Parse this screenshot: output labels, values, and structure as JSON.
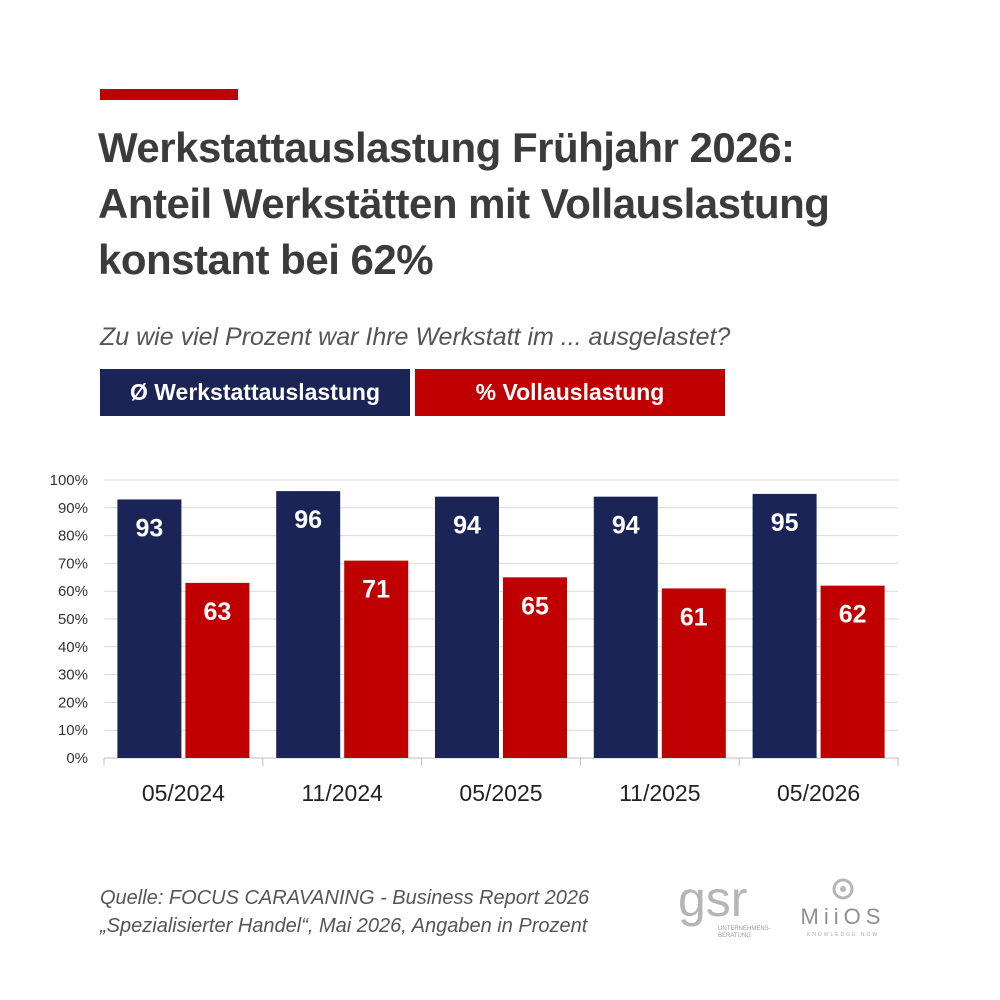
{
  "header": {
    "title_lines": [
      "Werkstattauslastung Frühjahr 2026:",
      "Anteil Werkstätten mit Vollauslastung",
      "konstant bei 62%"
    ],
    "subtitle": "Zu wie viel Prozent war Ihre Werkstatt im ... ausgelastet?"
  },
  "legend": {
    "items": [
      {
        "label": "Ø Werkstattauslastung",
        "color": "#1a2456"
      },
      {
        "label": "% Vollauslastung",
        "color": "#c00000"
      }
    ]
  },
  "colors": {
    "accent": "#c00000",
    "navy": "#1a2456",
    "red": "#c00000",
    "grid": "#d9d9d9"
  },
  "chart_data": {
    "type": "bar",
    "categories": [
      "05/2024",
      "11/2024",
      "05/2025",
      "11/2025",
      "05/2026"
    ],
    "series": [
      {
        "name": "Ø Werkstattauslastung",
        "values": [
          93,
          96,
          94,
          94,
          95
        ],
        "color": "#1a2456"
      },
      {
        "name": "% Vollauslastung",
        "values": [
          63,
          71,
          65,
          61,
          62
        ],
        "color": "#c00000"
      }
    ],
    "ylim": [
      0,
      100
    ],
    "yticks": [
      "0%",
      "10%",
      "20%",
      "30%",
      "40%",
      "50%",
      "60%",
      "70%",
      "80%",
      "90%",
      "100%"
    ],
    "grid": true,
    "data_labels": true
  },
  "footer": {
    "source_lines": [
      "Quelle: FOCUS CARAVANING - Business Report 2026",
      "„Spezialisierter Handel“, Mai 2026, Angaben in Prozent"
    ],
    "logos": [
      {
        "name": "gsr",
        "text": "gsr",
        "subtext": "UNTERNEHMENS-BERATUNG"
      },
      {
        "name": "miios",
        "text": "MiiOS",
        "subtext": "KNOWLEDGE NOW"
      }
    ]
  }
}
